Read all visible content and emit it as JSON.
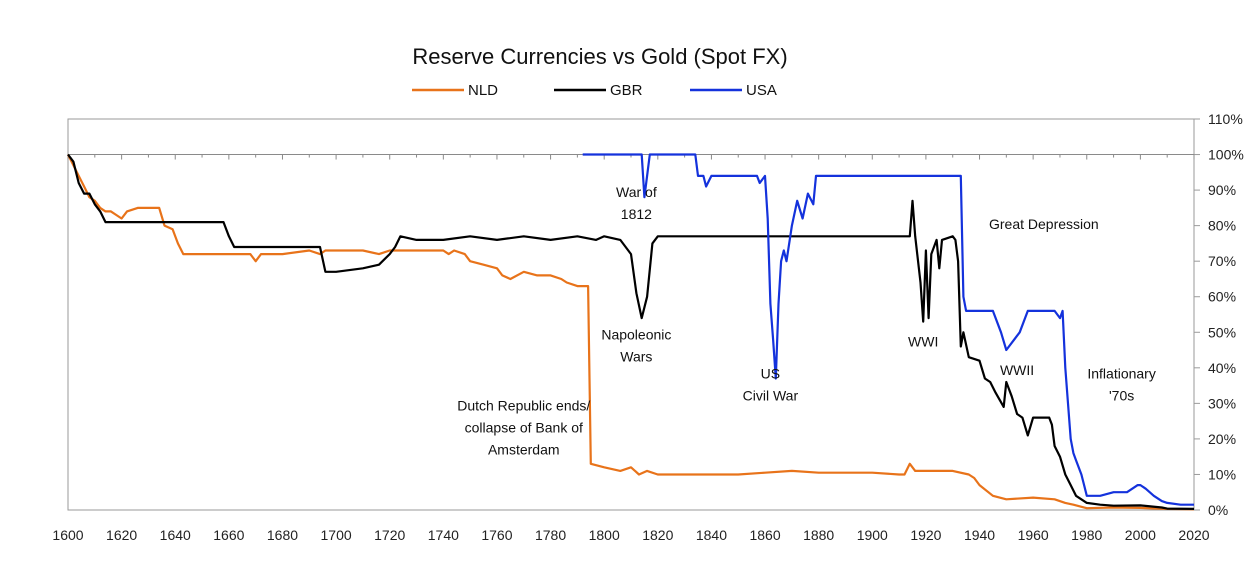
{
  "chart_data": {
    "type": "line",
    "title": "Reserve Currencies vs Gold (Spot FX)",
    "xlim": [
      1600,
      2020
    ],
    "ylim": [
      0,
      110
    ],
    "y_axis_side": "right",
    "x_ticks": [
      1600,
      1620,
      1640,
      1660,
      1680,
      1700,
      1720,
      1740,
      1760,
      1780,
      1800,
      1820,
      1840,
      1860,
      1880,
      1900,
      1920,
      1940,
      1960,
      1980,
      2000,
      2020
    ],
    "y_ticks": [
      {
        "value": 0,
        "label": "0%"
      },
      {
        "value": 10,
        "label": "10%"
      },
      {
        "value": 20,
        "label": "20%"
      },
      {
        "value": 30,
        "label": "30%"
      },
      {
        "value": 40,
        "label": "40%"
      },
      {
        "value": 50,
        "label": "50%"
      },
      {
        "value": 60,
        "label": "60%"
      },
      {
        "value": 70,
        "label": "70%"
      },
      {
        "value": 80,
        "label": "80%"
      },
      {
        "value": 90,
        "label": "90%"
      },
      {
        "value": 100,
        "label": "100%"
      },
      {
        "value": 110,
        "label": "110%"
      }
    ],
    "legend": {
      "placement": "top-center"
    },
    "series": [
      {
        "name": "NLD",
        "color": "#E8731A",
        "points": [
          [
            1600,
            100
          ],
          [
            1602,
            97
          ],
          [
            1604,
            94
          ],
          [
            1606,
            91
          ],
          [
            1608,
            88
          ],
          [
            1610,
            87
          ],
          [
            1612,
            85
          ],
          [
            1614,
            84
          ],
          [
            1616,
            84
          ],
          [
            1618,
            83
          ],
          [
            1620,
            82
          ],
          [
            1622,
            84
          ],
          [
            1626,
            85
          ],
          [
            1630,
            85
          ],
          [
            1634,
            85
          ],
          [
            1636,
            80
          ],
          [
            1639,
            79
          ],
          [
            1641,
            75
          ],
          [
            1643,
            72
          ],
          [
            1650,
            72
          ],
          [
            1660,
            72
          ],
          [
            1668,
            72
          ],
          [
            1670,
            70
          ],
          [
            1672,
            72
          ],
          [
            1680,
            72
          ],
          [
            1690,
            73
          ],
          [
            1694,
            72
          ],
          [
            1696,
            73
          ],
          [
            1700,
            73
          ],
          [
            1710,
            73
          ],
          [
            1716,
            72
          ],
          [
            1720,
            73
          ],
          [
            1730,
            73
          ],
          [
            1740,
            73
          ],
          [
            1742,
            72
          ],
          [
            1744,
            73
          ],
          [
            1748,
            72
          ],
          [
            1750,
            70
          ],
          [
            1755,
            69
          ],
          [
            1760,
            68
          ],
          [
            1762,
            66
          ],
          [
            1765,
            65
          ],
          [
            1770,
            67
          ],
          [
            1775,
            66
          ],
          [
            1780,
            66
          ],
          [
            1784,
            65
          ],
          [
            1786,
            64
          ],
          [
            1790,
            63
          ],
          [
            1791,
            63
          ],
          [
            1794,
            63
          ],
          [
            1795,
            13
          ],
          [
            1800,
            12
          ],
          [
            1806,
            11
          ],
          [
            1810,
            12
          ],
          [
            1813,
            10
          ],
          [
            1816,
            11
          ],
          [
            1820,
            10
          ],
          [
            1830,
            10
          ],
          [
            1840,
            10
          ],
          [
            1850,
            10
          ],
          [
            1860,
            10.5
          ],
          [
            1870,
            11
          ],
          [
            1880,
            10.5
          ],
          [
            1890,
            10.5
          ],
          [
            1900,
            10.5
          ],
          [
            1910,
            10
          ],
          [
            1912,
            10
          ],
          [
            1914,
            13
          ],
          [
            1916,
            11
          ],
          [
            1920,
            11
          ],
          [
            1930,
            11
          ],
          [
            1936,
            10
          ],
          [
            1938,
            9
          ],
          [
            1940,
            7
          ],
          [
            1945,
            4
          ],
          [
            1950,
            3
          ],
          [
            1960,
            3.5
          ],
          [
            1968,
            3
          ],
          [
            1972,
            2
          ],
          [
            1975,
            1.5
          ],
          [
            1980,
            0.5
          ],
          [
            1990,
            0.7
          ],
          [
            2000,
            0.6
          ],
          [
            2010,
            0.3
          ],
          [
            2020,
            0.2
          ]
        ]
      },
      {
        "name": "GBR",
        "color": "#000000",
        "points": [
          [
            1600,
            100
          ],
          [
            1602,
            98
          ],
          [
            1604,
            92
          ],
          [
            1606,
            89
          ],
          [
            1608,
            89
          ],
          [
            1610,
            86
          ],
          [
            1612,
            84
          ],
          [
            1614,
            81
          ],
          [
            1620,
            81
          ],
          [
            1630,
            81
          ],
          [
            1640,
            81
          ],
          [
            1650,
            81
          ],
          [
            1658,
            81
          ],
          [
            1660,
            77
          ],
          [
            1662,
            74
          ],
          [
            1670,
            74
          ],
          [
            1680,
            74
          ],
          [
            1690,
            74
          ],
          [
            1694,
            74
          ],
          [
            1696,
            67
          ],
          [
            1700,
            67
          ],
          [
            1710,
            68
          ],
          [
            1716,
            69
          ],
          [
            1720,
            72
          ],
          [
            1722,
            74
          ],
          [
            1724,
            77
          ],
          [
            1730,
            76
          ],
          [
            1740,
            76
          ],
          [
            1750,
            77
          ],
          [
            1760,
            76
          ],
          [
            1770,
            77
          ],
          [
            1780,
            76
          ],
          [
            1790,
            77
          ],
          [
            1797,
            76
          ],
          [
            1800,
            77
          ],
          [
            1806,
            76
          ],
          [
            1810,
            72
          ],
          [
            1812,
            61
          ],
          [
            1814,
            54
          ],
          [
            1816,
            60
          ],
          [
            1818,
            75
          ],
          [
            1820,
            77
          ],
          [
            1830,
            77
          ],
          [
            1840,
            77
          ],
          [
            1850,
            77
          ],
          [
            1860,
            77
          ],
          [
            1870,
            77
          ],
          [
            1880,
            77
          ],
          [
            1890,
            77
          ],
          [
            1900,
            77
          ],
          [
            1910,
            77
          ],
          [
            1914,
            77
          ],
          [
            1915,
            87
          ],
          [
            1916,
            77
          ],
          [
            1918,
            64
          ],
          [
            1919,
            53
          ],
          [
            1920,
            73
          ],
          [
            1921,
            54
          ],
          [
            1922,
            72
          ],
          [
            1924,
            76
          ],
          [
            1925,
            68
          ],
          [
            1926,
            76
          ],
          [
            1930,
            77
          ],
          [
            1931,
            76
          ],
          [
            1932,
            70
          ],
          [
            1933,
            46
          ],
          [
            1934,
            50
          ],
          [
            1936,
            43
          ],
          [
            1940,
            42
          ],
          [
            1942,
            37
          ],
          [
            1944,
            36
          ],
          [
            1946,
            33
          ],
          [
            1949,
            29
          ],
          [
            1950,
            36
          ],
          [
            1952,
            32
          ],
          [
            1954,
            27
          ],
          [
            1956,
            26
          ],
          [
            1958,
            21
          ],
          [
            1960,
            26
          ],
          [
            1966,
            26
          ],
          [
            1967,
            24
          ],
          [
            1968,
            18
          ],
          [
            1970,
            15
          ],
          [
            1972,
            10
          ],
          [
            1974,
            7
          ],
          [
            1976,
            4
          ],
          [
            1980,
            2
          ],
          [
            1985,
            1.5
          ],
          [
            1990,
            1.2
          ],
          [
            2000,
            1.3
          ],
          [
            2008,
            0.7
          ],
          [
            2010,
            0.4
          ],
          [
            2020,
            0.3
          ]
        ]
      },
      {
        "name": "USA",
        "color": "#1432DC",
        "points": [
          [
            1792,
            100
          ],
          [
            1800,
            100
          ],
          [
            1810,
            100
          ],
          [
            1814,
            100
          ],
          [
            1815,
            88
          ],
          [
            1816,
            94
          ],
          [
            1817,
            100
          ],
          [
            1820,
            100
          ],
          [
            1830,
            100
          ],
          [
            1834,
            100
          ],
          [
            1835,
            94
          ],
          [
            1837,
            94
          ],
          [
            1838,
            91
          ],
          [
            1840,
            94
          ],
          [
            1850,
            94
          ],
          [
            1857,
            94
          ],
          [
            1858,
            92
          ],
          [
            1860,
            94
          ],
          [
            1861,
            82
          ],
          [
            1862,
            58
          ],
          [
            1863,
            48
          ],
          [
            1864,
            37
          ],
          [
            1865,
            58
          ],
          [
            1866,
            70
          ],
          [
            1867,
            73
          ],
          [
            1868,
            70
          ],
          [
            1870,
            80
          ],
          [
            1872,
            87
          ],
          [
            1874,
            82
          ],
          [
            1876,
            89
          ],
          [
            1878,
            86
          ],
          [
            1879,
            94
          ],
          [
            1880,
            94
          ],
          [
            1890,
            94
          ],
          [
            1900,
            94
          ],
          [
            1910,
            94
          ],
          [
            1920,
            94
          ],
          [
            1930,
            94
          ],
          [
            1933,
            94
          ],
          [
            1934,
            60
          ],
          [
            1935,
            56
          ],
          [
            1940,
            56
          ],
          [
            1945,
            56
          ],
          [
            1948,
            50
          ],
          [
            1950,
            45
          ],
          [
            1955,
            50
          ],
          [
            1958,
            56
          ],
          [
            1965,
            56
          ],
          [
            1968,
            56
          ],
          [
            1970,
            54
          ],
          [
            1971,
            56
          ],
          [
            1972,
            40
          ],
          [
            1973,
            30
          ],
          [
            1974,
            20
          ],
          [
            1975,
            16
          ],
          [
            1976,
            14
          ],
          [
            1978,
            10
          ],
          [
            1979,
            7
          ],
          [
            1980,
            4
          ],
          [
            1983,
            4
          ],
          [
            1985,
            4
          ],
          [
            1990,
            5
          ],
          [
            1995,
            5
          ],
          [
            1999,
            7
          ],
          [
            2000,
            7
          ],
          [
            2002,
            6
          ],
          [
            2005,
            4
          ],
          [
            2008,
            2.5
          ],
          [
            2010,
            2
          ],
          [
            2015,
            1.5
          ],
          [
            2020,
            1.5
          ]
        ]
      }
    ],
    "annotations": [
      {
        "lines": [
          "War of",
          "1812"
        ],
        "x": 1812,
        "y": 88
      },
      {
        "lines": [
          "Napoleonic",
          "Wars"
        ],
        "x": 1812,
        "y": 48
      },
      {
        "lines": [
          "US",
          "Civil War"
        ],
        "x": 1862,
        "y": 37
      },
      {
        "lines": [
          "Dutch Republic ends/",
          "collapse of Bank of",
          "Amsterdam"
        ],
        "x": 1770,
        "y": 28
      },
      {
        "lines": [
          "WWI"
        ],
        "x": 1919,
        "y": 46
      },
      {
        "lines": [
          "WWII"
        ],
        "x": 1954,
        "y": 38
      },
      {
        "lines": [
          "Great Depression"
        ],
        "x": 1964,
        "y": 79
      },
      {
        "lines": [
          "Inflationary",
          "'70s"
        ],
        "x": 1993,
        "y": 37
      }
    ]
  }
}
